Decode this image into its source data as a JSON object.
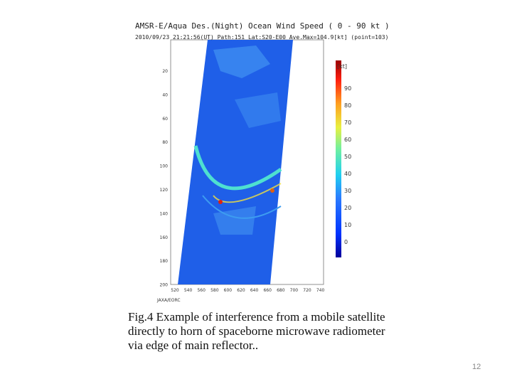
{
  "figure": {
    "title": "AMSR-E/Aqua Des.(Night) Ocean Wind Speed ( 0 - 90 kt )",
    "subtitle": "2010/09/23 21:21:56(UT) Path:151 Lat:S20-E00 Ave.Max=104.9[kt] (point=103)",
    "colorbar_unit": "[kt]",
    "colorbar_labels": [
      "90",
      "80",
      "70",
      "60",
      "50",
      "40",
      "30",
      "20",
      "10",
      "0"
    ],
    "y_labels": [
      "20",
      "40",
      "60",
      "80",
      "100",
      "120",
      "140",
      "160",
      "180",
      "200"
    ],
    "x_labels": [
      "520",
      "540",
      "560",
      "580",
      "600",
      "620",
      "640",
      "660",
      "680",
      "700",
      "720",
      "740"
    ],
    "credit": "JAXA/EORC"
  },
  "caption": [
    "Fig.4 Example of interference from a mobile satellite",
    "directly to horn of spaceborne microwave radiometer",
    "via edge of main reflector.."
  ],
  "page_number": "12"
}
